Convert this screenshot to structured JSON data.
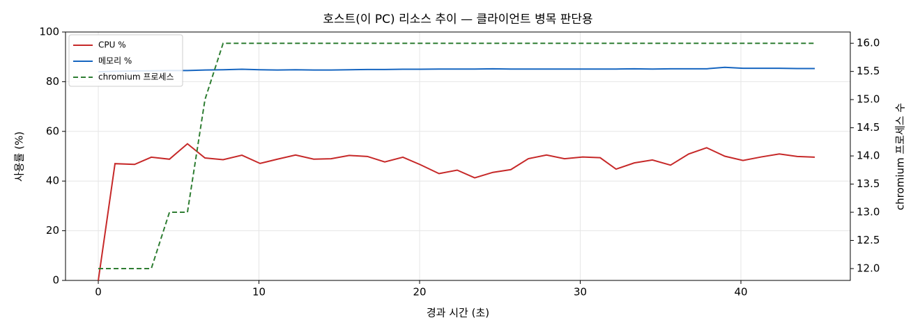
{
  "chart_data": {
    "type": "line",
    "title": "호스트(이 PC) 리소스 추이 — 클라이언트 병목 판단용",
    "xlabel": "경과 시간 (초)",
    "ylabel": "사용률 (%)",
    "y2label": "chromium 프로세스 수",
    "x": [
      0,
      1.04,
      2.26,
      3.3,
      4.43,
      5.55,
      6.64,
      7.77,
      8.94,
      10.07,
      11.15,
      12.28,
      13.41,
      14.49,
      15.62,
      16.75,
      17.83,
      18.96,
      20.04,
      21.21,
      22.34,
      23.43,
      24.56,
      25.68,
      26.77,
      27.9,
      29.02,
      30.15,
      31.24,
      32.23,
      33.36,
      34.49,
      35.62,
      36.75,
      37.87,
      39,
      40.13,
      41.26,
      42.39,
      43.51,
      44.6
    ],
    "series": [
      {
        "name": "CPU %",
        "color": "#c62828",
        "axis": "y",
        "dash": false,
        "values": [
          0,
          47,
          46.7,
          49.6,
          48.8,
          55,
          49.3,
          48.6,
          50.4,
          47.1,
          48.8,
          50.5,
          48.8,
          49,
          50.3,
          49.9,
          47.7,
          49.6,
          46.6,
          43,
          44.4,
          41.3,
          43.5,
          44.6,
          49,
          50.5,
          49,
          49.7,
          49.4,
          44.8,
          47.3,
          48.5,
          46.4,
          50.9,
          53.4,
          50,
          48.3,
          49.7,
          50.9,
          49.9,
          49.6
        ]
      },
      {
        "name": "메모리 %",
        "color": "#1565c0",
        "axis": "y",
        "dash": false,
        "values": [
          84,
          84.2,
          84.3,
          84.4,
          84.5,
          84.5,
          84.7,
          84.8,
          85,
          84.8,
          84.7,
          84.8,
          84.7,
          84.7,
          84.8,
          84.9,
          84.9,
          85,
          85,
          85.1,
          85.1,
          85.1,
          85.2,
          85.1,
          85.1,
          85.1,
          85.1,
          85.1,
          85.1,
          85.1,
          85.2,
          85.1,
          85.2,
          85.2,
          85.2,
          85.8,
          85.4,
          85.4,
          85.4,
          85.3,
          85.3
        ]
      },
      {
        "name": "chromium 프로세스",
        "color": "#2e7d32",
        "axis": "y2",
        "dash": true,
        "values": [
          12,
          12,
          12,
          12,
          13,
          13,
          15,
          16,
          16,
          16,
          16,
          16,
          16,
          16,
          16,
          16,
          16,
          16,
          16,
          16,
          16,
          16,
          16,
          16,
          16,
          16,
          16,
          16,
          16,
          16,
          16,
          16,
          16,
          16,
          16,
          16,
          16,
          16,
          16,
          16,
          16
        ]
      }
    ],
    "xlim": [
      -2.04,
      46.81
    ],
    "xticks": [
      0,
      10,
      20,
      30,
      40
    ],
    "ylim": [
      0,
      100
    ],
    "yticks": [
      0,
      20,
      40,
      60,
      80,
      100
    ],
    "y2lim": [
      11.79,
      16.2
    ],
    "y2ticks": [
      {
        "value": 12,
        "label": "12.0"
      },
      {
        "value": 12.5,
        "label": "12.5"
      },
      {
        "value": 13,
        "label": "13.0"
      },
      {
        "value": 13.5,
        "label": "13.5"
      },
      {
        "value": 14,
        "label": "14.0"
      },
      {
        "value": 14.5,
        "label": "14.5"
      },
      {
        "value": 15,
        "label": "15.0"
      },
      {
        "value": 15.5,
        "label": "15.5"
      },
      {
        "value": 16,
        "label": "16.0"
      }
    ],
    "grid": true,
    "legend": "upper left"
  }
}
